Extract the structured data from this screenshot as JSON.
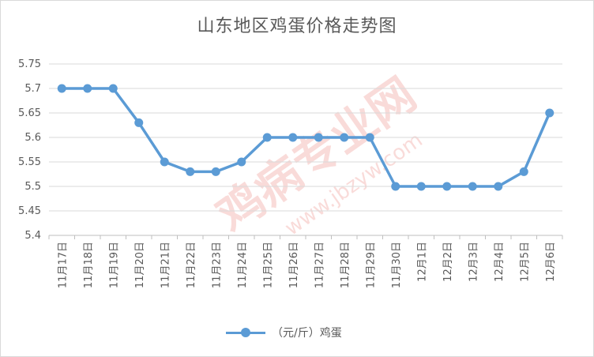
{
  "chart_data": {
    "type": "line",
    "title": "山东地区鸡蛋价格走势图",
    "categories": [
      "11月17日",
      "11月18日",
      "11月19日",
      "11月20日",
      "11月21日",
      "11月22日",
      "11月23日",
      "11月24日",
      "11月25日",
      "11月26日",
      "11月27日",
      "11月28日",
      "11月29日",
      "11月30日",
      "12月1日",
      "12月2日",
      "12月3日",
      "12月4日",
      "12月5日",
      "12月6日"
    ],
    "series": [
      {
        "name": "（元/斤）鸡蛋",
        "values": [
          5.7,
          5.7,
          5.7,
          5.63,
          5.55,
          5.53,
          5.53,
          5.55,
          5.6,
          5.6,
          5.6,
          5.6,
          5.6,
          5.5,
          5.5,
          5.5,
          5.5,
          5.5,
          5.53,
          5.65
        ]
      }
    ],
    "ylim": [
      5.4,
      5.75
    ],
    "yticks": [
      "5.4",
      "5.45",
      "5.5",
      "5.55",
      "5.6",
      "5.65",
      "5.7",
      "5.75"
    ],
    "grid": true,
    "legend": "bottom",
    "color": "#5b9bd5"
  },
  "watermark": {
    "main": "鸡病专业网",
    "sub": "www.jbzyw.com"
  }
}
